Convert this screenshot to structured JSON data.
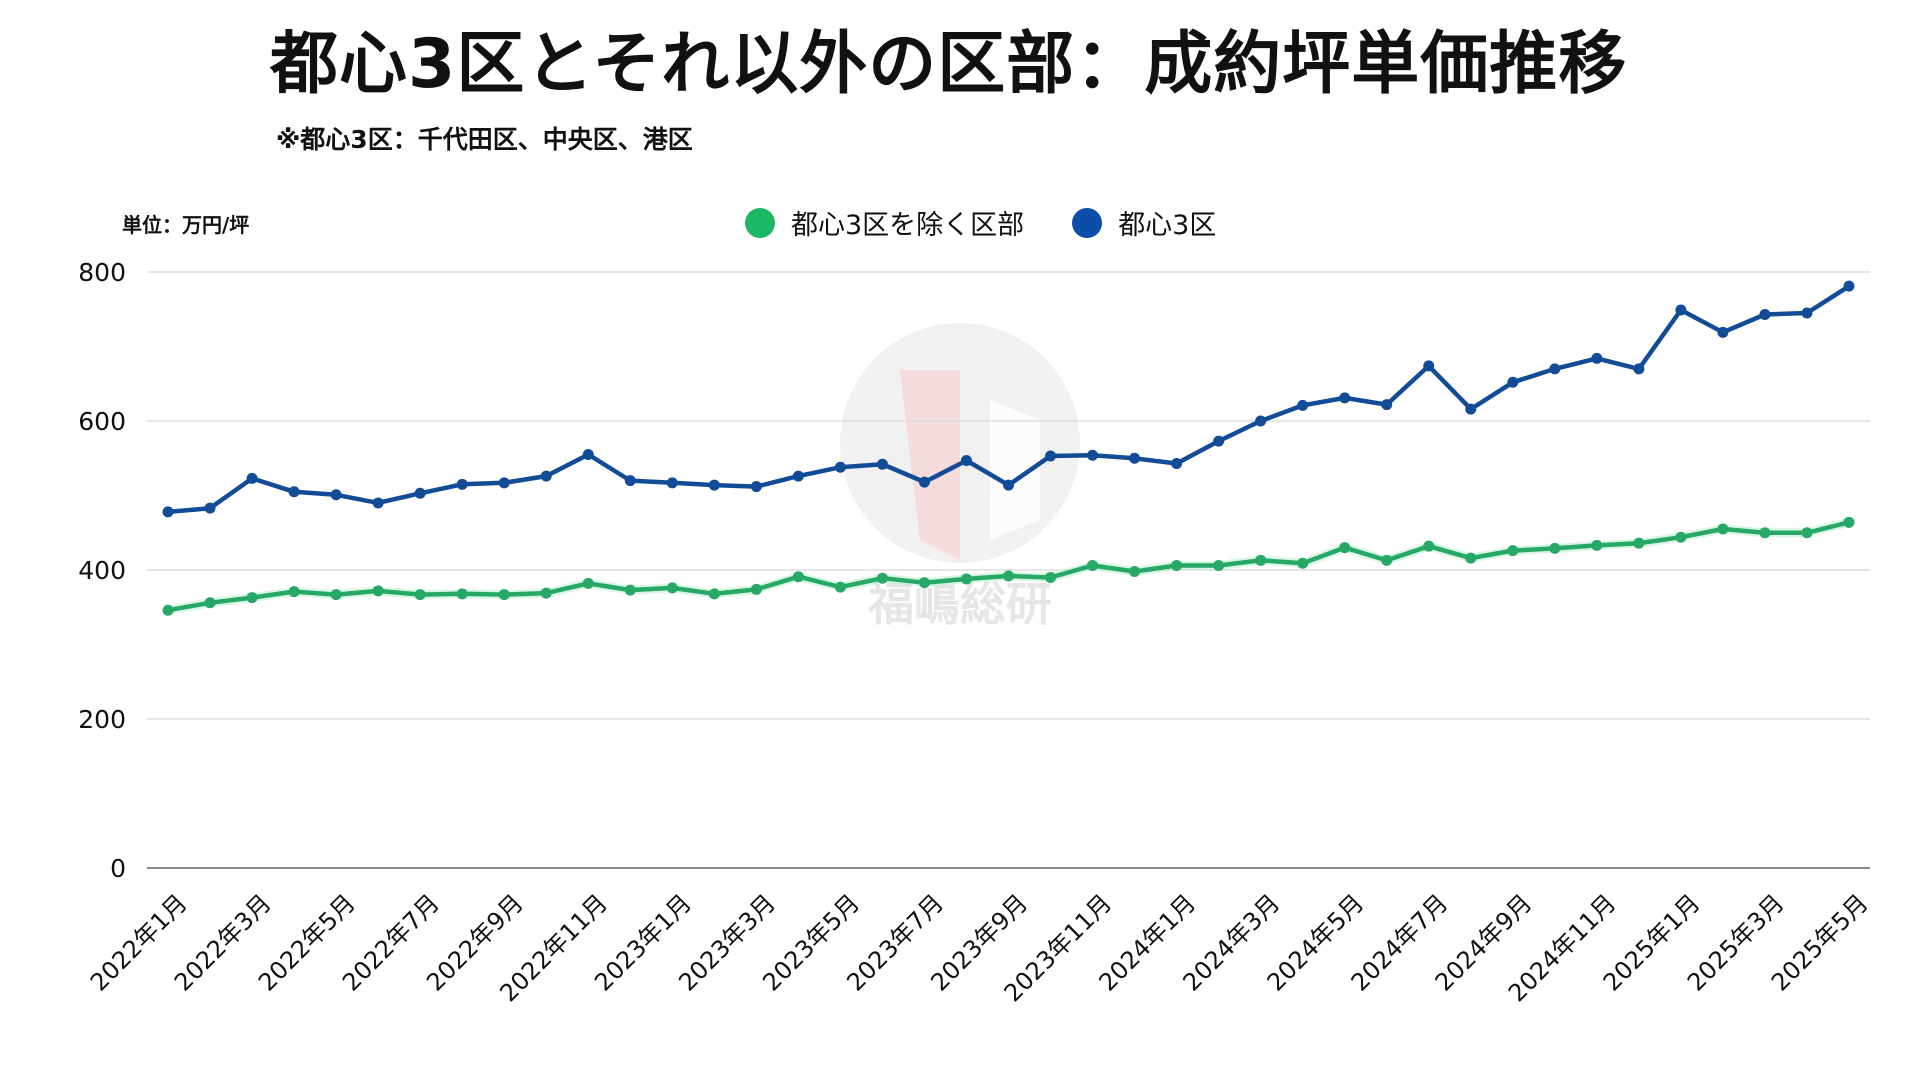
{
  "title": "都心3区とそれ以外の区部：成約坪単価推移",
  "subtitle": "※都心3区：千代田区、中央区、港区",
  "unit_label": "単位：万円/坪",
  "legend": [
    {
      "label": "都心3区を除く区部",
      "color": "#1DB866"
    },
    {
      "label": "都心3区",
      "color": "#0B4DA8"
    }
  ],
  "watermark": "福嶋総研",
  "colors": {
    "green_line": "#27A866",
    "blue_line": "#134C96",
    "grid": "#dddddd",
    "axis": "#888888"
  },
  "chart_data": {
    "type": "line",
    "title": "都心3区とそれ以外の区部：成約坪単価推移",
    "subtitle": "※都心3区：千代田区、中央区、港区",
    "xlabel": "",
    "ylabel": "単位：万円/坪",
    "ylim": [
      0,
      800
    ],
    "yticks": [
      0,
      200,
      400,
      600,
      800
    ],
    "grid": true,
    "legend_position": "top",
    "x": [
      "2022年1月",
      "2022年2月",
      "2022年3月",
      "2022年4月",
      "2022年5月",
      "2022年6月",
      "2022年7月",
      "2022年8月",
      "2022年9月",
      "2022年10月",
      "2022年11月",
      "2022年12月",
      "2023年1月",
      "2023年2月",
      "2023年3月",
      "2023年4月",
      "2023年5月",
      "2023年6月",
      "2023年7月",
      "2023年8月",
      "2023年9月",
      "2023年10月",
      "2023年11月",
      "2023年12月",
      "2024年1月",
      "2024年2月",
      "2024年3月",
      "2024年4月",
      "2024年5月",
      "2024年6月",
      "2024年7月",
      "2024年8月",
      "2024年9月",
      "2024年10月",
      "2024年11月",
      "2024年12月",
      "2025年1月",
      "2025年2月",
      "2025年3月",
      "2025年4月",
      "2025年5月"
    ],
    "xtick_labels": [
      "2022年1月",
      "2022年3月",
      "2022年5月",
      "2022年7月",
      "2022年9月",
      "2022年11月",
      "2023年1月",
      "2023年3月",
      "2023年5月",
      "2023年7月",
      "2023年9月",
      "2023年11月",
      "2024年1月",
      "2024年3月",
      "2024年5月",
      "2024年7月",
      "2024年9月",
      "2024年11月",
      "2025年1月",
      "2025年3月",
      "2025年5月"
    ],
    "series": [
      {
        "name": "都心3区を除く区部",
        "color": "#27A866",
        "values": [
          346,
          356,
          363,
          371,
          367,
          372,
          367,
          368,
          367,
          369,
          382,
          373,
          376,
          368,
          374,
          391,
          377,
          389,
          383,
          388,
          392,
          390,
          406,
          398,
          406,
          406,
          413,
          409,
          430,
          413,
          432,
          416,
          426,
          429,
          433,
          436,
          444,
          455,
          450,
          450,
          464
        ]
      },
      {
        "name": "都心3区",
        "color": "#134C96",
        "values": [
          478,
          483,
          523,
          505,
          501,
          490,
          503,
          515,
          517,
          526,
          555,
          520,
          517,
          514,
          512,
          526,
          538,
          542,
          518,
          547,
          514,
          553,
          554,
          550,
          543,
          573,
          600,
          621,
          631,
          622,
          674,
          616,
          652,
          670,
          684,
          670,
          749,
          719,
          743,
          745,
          781
        ]
      }
    ]
  }
}
